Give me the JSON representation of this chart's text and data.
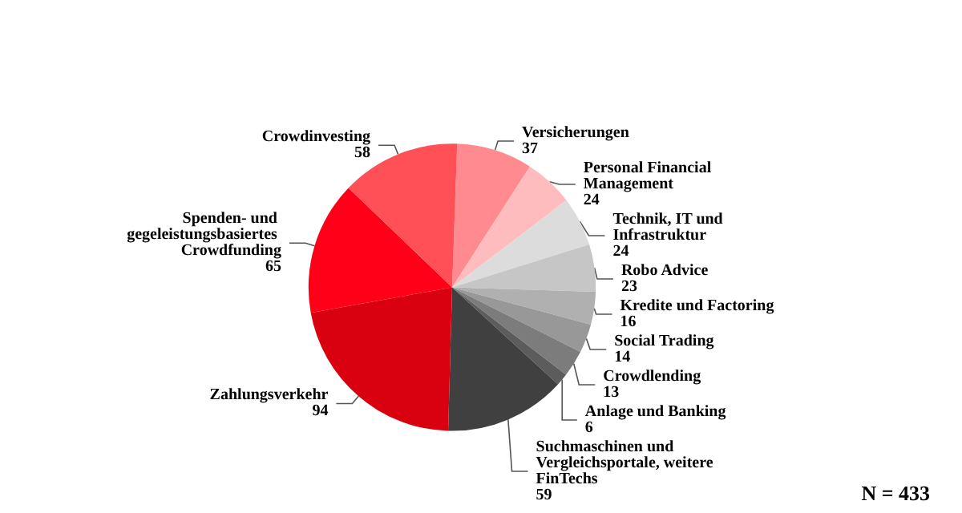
{
  "chart_data": {
    "type": "pie",
    "categories": [
      "Versicherungen",
      "Personal Financial Management",
      "Technik, IT und Infrastruktur",
      "Robo Advice",
      "Kredite und Factoring",
      "Social Trading",
      "Crowdlending",
      "Anlage und Banking",
      "Suchmaschinen und Vergleichsportale, weitere FinTechs",
      "Zahlungsverkehr",
      "Spenden- und gegeleistungsbasiertes Crowdfunding",
      "Crowdinvesting"
    ],
    "values": [
      37,
      24,
      24,
      23,
      16,
      14,
      13,
      6,
      59,
      94,
      65,
      58
    ],
    "colors": [
      "#ff8a8f",
      "#ffbcbe",
      "#dcdcdc",
      "#c6c6c6",
      "#b0b0b0",
      "#989898",
      "#7c7c7c",
      "#5c5c5c",
      "#404040",
      "#d9000f",
      "#ff0018",
      "#ff5058"
    ],
    "data_labels": true,
    "annotations": [
      "N = 433"
    ]
  }
}
